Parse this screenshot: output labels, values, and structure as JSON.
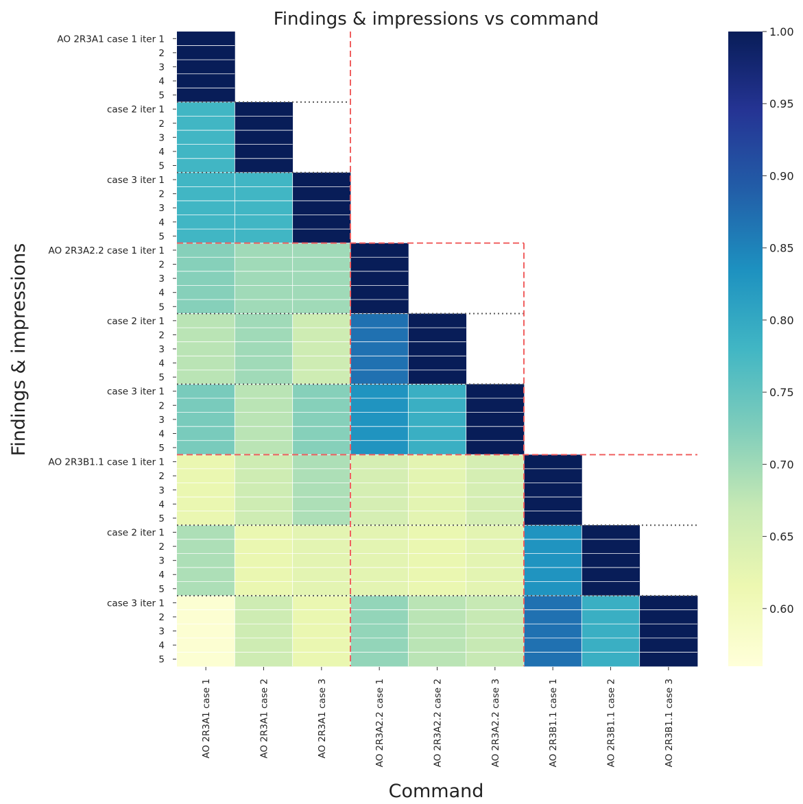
{
  "chart_data": {
    "type": "heatmap",
    "title": "Findings & impressions vs command",
    "xlabel": "Command",
    "ylabel": "Findings & impressions",
    "x_categories": [
      "AO 2R3A1 case 1",
      "AO 2R3A1 case 2",
      "AO 2R3A1 case 3",
      "AO 2R3A2.2 case 1",
      "AO 2R3A2.2 case 2",
      "AO 2R3A2.2 case 3",
      "AO 2R3B1.1 case 1",
      "AO 2R3B1.1 case 2",
      "AO 2R3B1.1 case 3"
    ],
    "y_tick_labels": [
      "AO 2R3A1 case 1 iter 1",
      "2",
      "3",
      "4",
      "5",
      "case 2 iter 1",
      "2",
      "3",
      "4",
      "5",
      "case 3 iter 1",
      "2",
      "3",
      "4",
      "5",
      "AO 2R3A2.2 case 1 iter 1",
      "2",
      "3",
      "4",
      "5",
      "case 2 iter 1",
      "2",
      "3",
      "4",
      "5",
      "case 3 iter 1",
      "2",
      "3",
      "4",
      "5",
      "AO 2R3B1.1 case 1 iter 1",
      "2",
      "3",
      "4",
      "5",
      "case 2 iter 1",
      "2",
      "3",
      "4",
      "5",
      "case 3 iter 1",
      "2",
      "3",
      "4",
      "5"
    ],
    "case_block_values": [
      [
        1.0,
        null,
        null,
        null,
        null,
        null,
        null,
        null,
        null
      ],
      [
        0.78,
        1.0,
        null,
        null,
        null,
        null,
        null,
        null,
        null
      ],
      [
        0.78,
        0.78,
        1.0,
        null,
        null,
        null,
        null,
        null,
        null
      ],
      [
        0.72,
        0.7,
        0.7,
        1.0,
        null,
        null,
        null,
        null,
        null
      ],
      [
        0.68,
        0.7,
        0.66,
        0.87,
        1.0,
        null,
        null,
        null,
        null
      ],
      [
        0.73,
        0.68,
        0.72,
        0.83,
        0.79,
        1.0,
        null,
        null,
        null
      ],
      [
        0.62,
        0.66,
        0.69,
        0.65,
        0.63,
        0.65,
        1.0,
        null,
        null
      ],
      [
        0.69,
        0.62,
        0.63,
        0.63,
        0.62,
        0.63,
        0.83,
        1.0,
        null
      ],
      [
        0.57,
        0.66,
        0.62,
        0.71,
        0.68,
        0.67,
        0.87,
        0.79,
        1.0
      ]
    ],
    "rows_per_case": 5,
    "colorbar": {
      "min": 0.56,
      "max": 1.0,
      "ticks": [
        "1.00",
        "0.95",
        "0.90",
        "0.85",
        "0.80",
        "0.75",
        "0.70",
        "0.65",
        "0.60"
      ],
      "colormap": "YlGnBu",
      "color_stops": [
        [
          0.0,
          "#ffffd9"
        ],
        [
          0.125,
          "#edf8b1"
        ],
        [
          0.25,
          "#c7e9b4"
        ],
        [
          0.375,
          "#7fcdbb"
        ],
        [
          0.5,
          "#41b6c4"
        ],
        [
          0.625,
          "#1d91c0"
        ],
        [
          0.75,
          "#225ea8"
        ],
        [
          0.875,
          "#253494"
        ],
        [
          1.0,
          "#081d58"
        ]
      ]
    },
    "separators": {
      "dotted_color": "#555555",
      "dashed_color": "#f06060"
    }
  }
}
